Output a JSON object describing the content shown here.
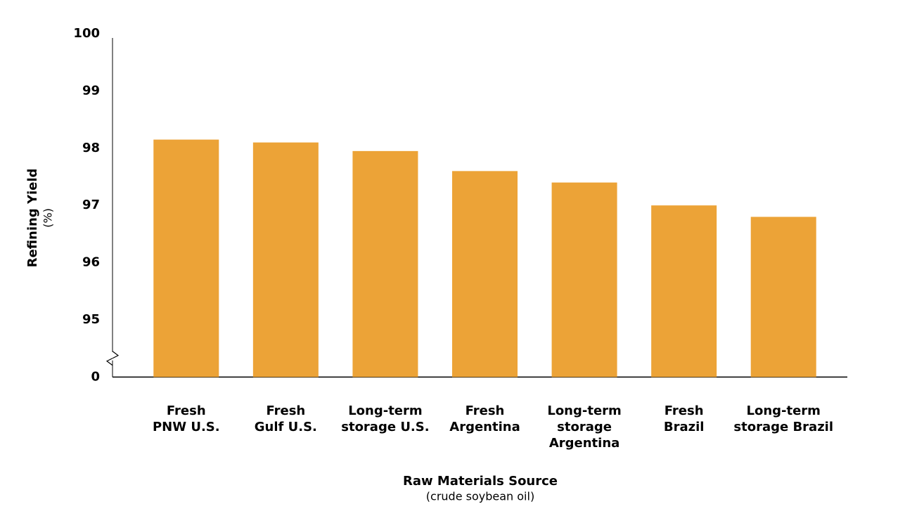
{
  "chart_data": {
    "type": "bar",
    "x_label": "Raw Materials Source",
    "x_sublabel": "(crude soybean oil)",
    "y_label": "Refining Yield",
    "y_sublabel": "(%)",
    "categories": [
      "Fresh\nPNW U.S.",
      "Fresh\nGulf U.S.",
      "Long-term\nstorage U.S.",
      "Fresh\nArgentina",
      "Long-term\nstorage\nArgentina",
      "Fresh\nBrazil",
      "Long-term\nstorage Brazil"
    ],
    "values": [
      98.15,
      98.1,
      97.95,
      97.6,
      97.4,
      97.0,
      96.8
    ],
    "color": "#eca337",
    "ylim": [
      0,
      100
    ],
    "yticks": [
      0,
      95,
      96,
      97,
      98,
      99,
      100
    ],
    "axis_break": [
      0,
      95
    ],
    "grid": false
  }
}
